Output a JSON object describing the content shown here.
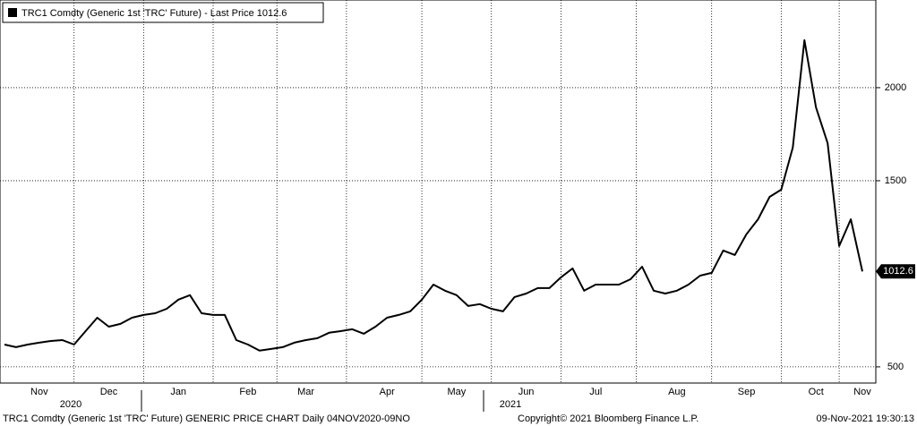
{
  "chart_data": {
    "type": "line",
    "title": "TRC1 Comdty (Generic 1st 'TRC' Future) - Last Price 1012.6",
    "footer": "TRC1 Comdty (Generic 1st 'TRC' Future) GENERIC PRICE CHART  Daily 04NOV2020-09NO",
    "copyright": "Copyright© 2021 Bloomberg Finance L.P.",
    "timestamp": "09-Nov-2021 19:30:13",
    "years": [
      "2020",
      "2021"
    ],
    "last_price_label": "1012.6",
    "categories": [
      null,
      null,
      null,
      "Nov",
      null,
      null,
      null,
      null,
      null,
      "Dec",
      null,
      null,
      null,
      null,
      null,
      "Jan",
      null,
      null,
      null,
      null,
      null,
      "Feb",
      null,
      null,
      null,
      null,
      "Mar",
      null,
      null,
      null,
      null,
      null,
      null,
      "Apr",
      null,
      null,
      null,
      null,
      null,
      "May",
      null,
      null,
      null,
      null,
      null,
      "Jun",
      null,
      null,
      null,
      null,
      null,
      "Jul",
      null,
      null,
      null,
      null,
      null,
      null,
      "Aug",
      null,
      null,
      null,
      null,
      null,
      "Sep",
      null,
      null,
      null,
      null,
      null,
      "Oct",
      null,
      null,
      null,
      "Nov"
    ],
    "series": [
      {
        "name": "TRC1 Comdty",
        "color": "#000000",
        "values": [
          620,
          606,
          620,
          630,
          639,
          644,
          620,
          692,
          764,
          716,
          731,
          764,
          779,
          788,
          812,
          861,
          885,
          788,
          779,
          779,
          644,
          620,
          587,
          596,
          606,
          630,
          644,
          654,
          683,
          692,
          702,
          678,
          716,
          764,
          779,
          798,
          861,
          942,
          909,
          885,
          827,
          837,
          812,
          798,
          875,
          894,
          923,
          923,
          981,
          1029,
          909,
          942,
          942,
          942,
          971,
          1038,
          909,
          894,
          909,
          942,
          990,
          1005,
          1125,
          1101,
          1212,
          1293,
          1413,
          1452,
          1678,
          2255,
          1894,
          1702,
          1149,
          1293,
          1012.6
        ]
      }
    ],
    "ylim": [
      413,
      2471
    ],
    "yticks": [
      500,
      1500,
      2000
    ],
    "grid": true
  }
}
